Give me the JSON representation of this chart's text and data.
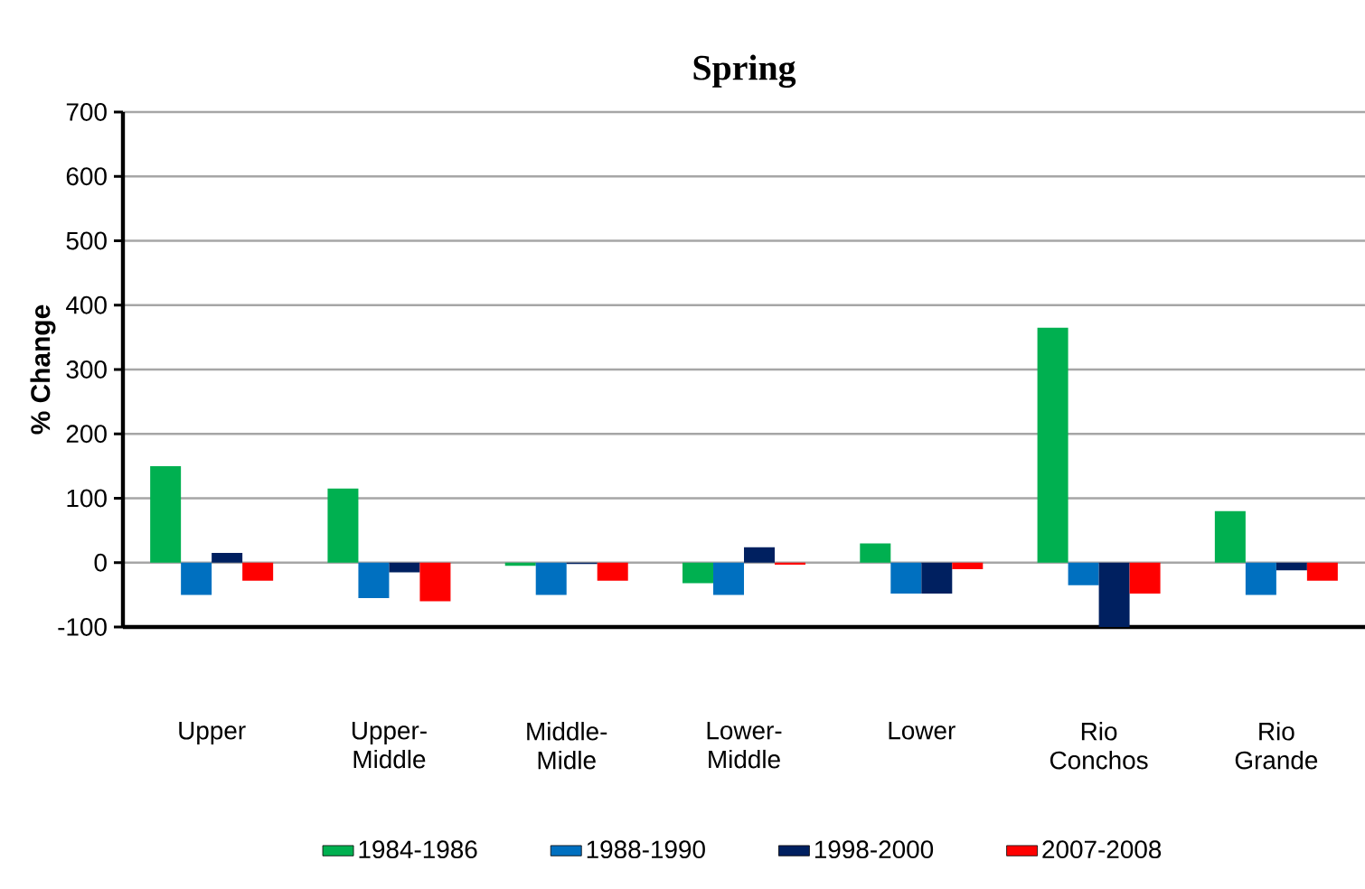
{
  "chart_data": {
    "type": "bar",
    "title": "Spring",
    "ylabel": "% Change",
    "categories": [
      "Upper",
      "Upper-Middle",
      "Middle-Midle",
      "Lower-Middle",
      "Lower",
      "Rio Conchos",
      "Rio Grande"
    ],
    "series": [
      {
        "name": "1984-1986",
        "color": "#00b050",
        "values": [
          150,
          115,
          -5,
          -32,
          30,
          365,
          80
        ]
      },
      {
        "name": "1988-1990",
        "color": "#0070c0",
        "values": [
          -50,
          -55,
          -50,
          -50,
          -48,
          -35,
          -50
        ]
      },
      {
        "name": "1998-2000",
        "color": "#002060",
        "values": [
          15,
          -15,
          -2,
          24,
          -48,
          -100,
          -12
        ]
      },
      {
        "name": "2007-2008",
        "color": "#ff0000",
        "values": [
          -28,
          -60,
          -28,
          -3,
          -10,
          -48,
          -28
        ]
      }
    ],
    "ylim": [
      -100,
      700
    ],
    "yticks": [
      -100,
      0,
      100,
      200,
      300,
      400,
      500,
      600,
      700
    ],
    "grid": "y",
    "legend": "bottom"
  }
}
